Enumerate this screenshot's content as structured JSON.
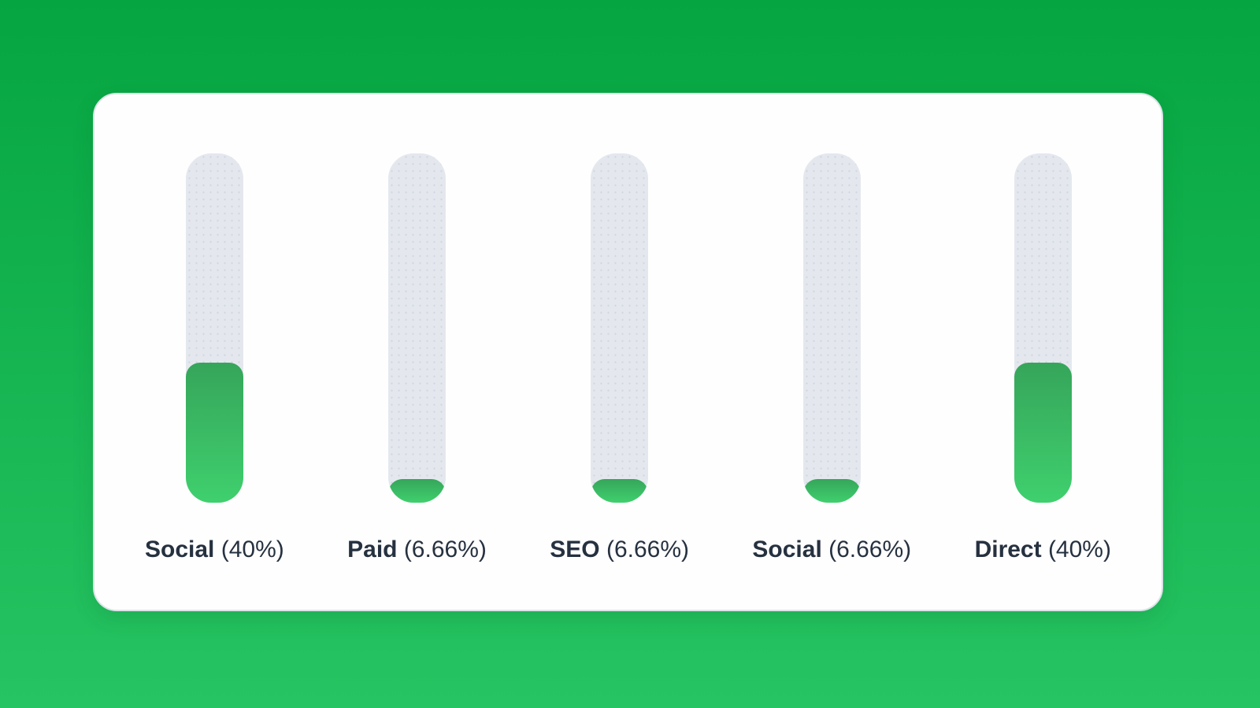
{
  "chart_data": {
    "type": "bar",
    "orientation": "vertical",
    "categories": [
      "Social",
      "Paid",
      "SEO",
      "Social",
      "Direct"
    ],
    "values": [
      40,
      6.66,
      6.66,
      6.66,
      40
    ],
    "value_labels": [
      "(40%)",
      "(6.66%)",
      "(6.66%)",
      "(6.66%)",
      "(40%)"
    ],
    "ylim": [
      0,
      100
    ],
    "grid": false,
    "legend": false
  },
  "colors": {
    "background_top": "#05a541",
    "background_bottom": "#26c462",
    "card_background": "#fefefe",
    "card_border": "#dde3e9",
    "track": "#e4e8ee",
    "fill_gradient_top": "#36a55a",
    "fill_gradient_bottom": "#3fd06e",
    "label_text": "#263140"
  }
}
